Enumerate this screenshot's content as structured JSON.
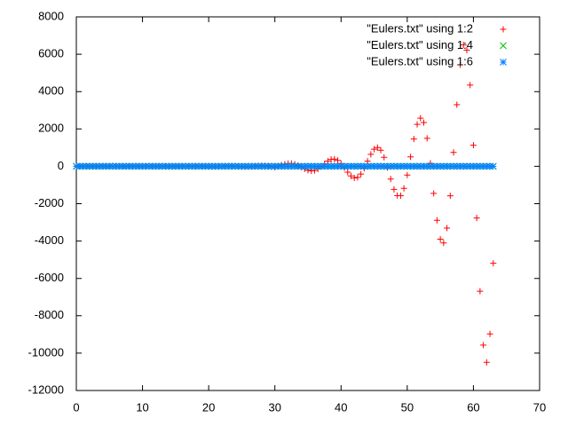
{
  "chart_data": {
    "type": "scatter",
    "x": [
      0,
      0.5,
      1,
      1.5,
      2,
      2.5,
      3,
      3.5,
      4,
      4.5,
      5,
      5.5,
      6,
      6.5,
      7,
      7.5,
      8,
      8.5,
      9,
      9.5,
      10,
      10.5,
      11,
      11.5,
      12,
      12.5,
      13,
      13.5,
      14,
      14.5,
      15,
      15.5,
      16,
      16.5,
      17,
      17.5,
      18,
      18.5,
      19,
      19.5,
      20,
      20.5,
      21,
      21.5,
      22,
      22.5,
      23,
      23.5,
      24,
      24.5,
      25,
      25.5,
      26,
      26.5,
      27,
      27.5,
      28,
      28.5,
      29,
      29.5,
      30,
      30.5,
      31,
      31.5,
      32,
      32.5,
      33,
      33.5,
      34,
      34.5,
      35,
      35.5,
      36,
      36.5,
      37,
      37.5,
      38,
      38.5,
      39,
      39.5,
      40,
      40.5,
      41,
      41.5,
      42,
      42.5,
      43,
      43.5,
      44,
      44.5,
      45,
      45.5,
      46,
      46.5,
      47,
      47.5,
      48,
      48.5,
      49,
      49.5,
      50,
      50.5,
      51,
      51.5,
      52,
      52.5,
      53,
      53.5,
      54,
      54.5,
      55,
      55.5,
      56,
      56.5,
      57,
      57.5,
      58,
      58.5,
      59,
      59.5,
      60,
      60.5,
      61,
      61.5,
      62,
      62.5,
      63
    ],
    "series": [
      {
        "name": "\"Eulers.txt\" using 1:2",
        "color": "#ff0000",
        "marker": "plus",
        "values": [
          0,
          0,
          0,
          0,
          0,
          0,
          0,
          0,
          0,
          0,
          0,
          0,
          0,
          0,
          0,
          0,
          0,
          0,
          0,
          0,
          0,
          0,
          0,
          0,
          0,
          0,
          0,
          0,
          0,
          0,
          0,
          0,
          0,
          0,
          0,
          0,
          0,
          0,
          0,
          0,
          -8,
          -12,
          -10,
          -4,
          4,
          10,
          14,
          12,
          5,
          -5,
          -14,
          -20,
          -18,
          -8,
          6,
          20,
          28,
          25,
          12,
          -20,
          -47,
          5,
          64,
          116,
          148,
          149,
          113,
          44,
          -47,
          -138,
          -212,
          -245,
          -222,
          -141,
          -15,
          134,
          274,
          369,
          389,
          313,
          149,
          -70,
          -313,
          -515,
          -622,
          -595,
          -416,
          -108,
          273,
          640,
          917,
          1005,
          860,
          485,
          -64,
          -683,
          -1231,
          -1568,
          -1573,
          -1180,
          -468,
          503,
          1462,
          2247,
          2581,
          2340,
          1496,
          161,
          -1449,
          -2891,
          -3900,
          -4103,
          -3305,
          -1578,
          741,
          3297,
          5434,
          6500,
          6221,
          4347,
          1127,
          -2766,
          -6684,
          -9571,
          -10493,
          -8969,
          -5187
        ]
      },
      {
        "name": "\"Eulers.txt\" using 1:4",
        "color": "#00c000",
        "marker": "cross",
        "values": [
          0,
          0,
          0,
          0,
          0,
          0,
          0,
          0,
          0,
          0,
          0,
          0,
          0,
          0,
          0,
          0,
          0,
          0,
          0,
          0,
          0,
          0,
          0,
          0,
          0,
          0,
          0,
          0,
          0,
          0,
          0,
          0,
          0,
          0,
          0,
          0,
          0,
          0,
          0,
          0,
          0,
          0,
          0,
          0,
          0,
          0,
          0,
          0,
          0,
          0,
          0,
          0,
          0,
          0,
          0,
          0,
          0,
          0,
          0,
          0,
          0,
          0,
          0,
          0,
          0,
          0,
          0,
          0,
          0,
          0,
          0,
          0,
          0,
          0,
          0,
          0,
          0,
          0,
          0,
          0,
          0,
          0,
          0,
          0,
          0,
          0,
          0,
          0,
          0,
          0,
          0,
          0,
          0,
          0,
          0,
          0,
          0,
          0,
          0,
          0,
          0,
          0,
          0,
          0,
          0,
          0,
          0,
          0,
          0,
          0,
          0,
          0,
          0,
          0,
          0,
          0,
          0,
          0,
          0,
          0,
          0,
          0,
          0,
          0,
          0,
          0,
          0
        ]
      },
      {
        "name": "\"Eulers.txt\" using 1:6",
        "color": "#0080ff",
        "marker": "star",
        "values": [
          0,
          0,
          0,
          0,
          0,
          0,
          0,
          0,
          0,
          0,
          0,
          0,
          0,
          0,
          0,
          0,
          0,
          0,
          0,
          0,
          0,
          0,
          0,
          0,
          0,
          0,
          0,
          0,
          0,
          0,
          0,
          0,
          0,
          0,
          0,
          0,
          0,
          0,
          0,
          0,
          0,
          0,
          0,
          0,
          0,
          0,
          0,
          0,
          0,
          0,
          0,
          0,
          0,
          0,
          0,
          0,
          0,
          0,
          0,
          0,
          0,
          0,
          0,
          0,
          0,
          0,
          0,
          0,
          0,
          0,
          0,
          0,
          0,
          0,
          0,
          0,
          0,
          0,
          0,
          0,
          0,
          0,
          0,
          0,
          0,
          0,
          0,
          0,
          0,
          0,
          0,
          0,
          0,
          0,
          0,
          0,
          0,
          0,
          0,
          0,
          0,
          0,
          0,
          0,
          0,
          0,
          0,
          0,
          0,
          0,
          0,
          0,
          0,
          0,
          0,
          0,
          0,
          0,
          0,
          0,
          0,
          0,
          0,
          0,
          0,
          0,
          0
        ]
      }
    ],
    "xlim": [
      0,
      70
    ],
    "xticks": [
      0,
      10,
      20,
      30,
      40,
      50,
      60,
      70
    ],
    "ylim": [
      -12000,
      8000
    ],
    "yticks": [
      -12000,
      -10000,
      -8000,
      -6000,
      -4000,
      -2000,
      0,
      2000,
      4000,
      6000,
      8000
    ],
    "grid": false,
    "legend": "top-right"
  }
}
